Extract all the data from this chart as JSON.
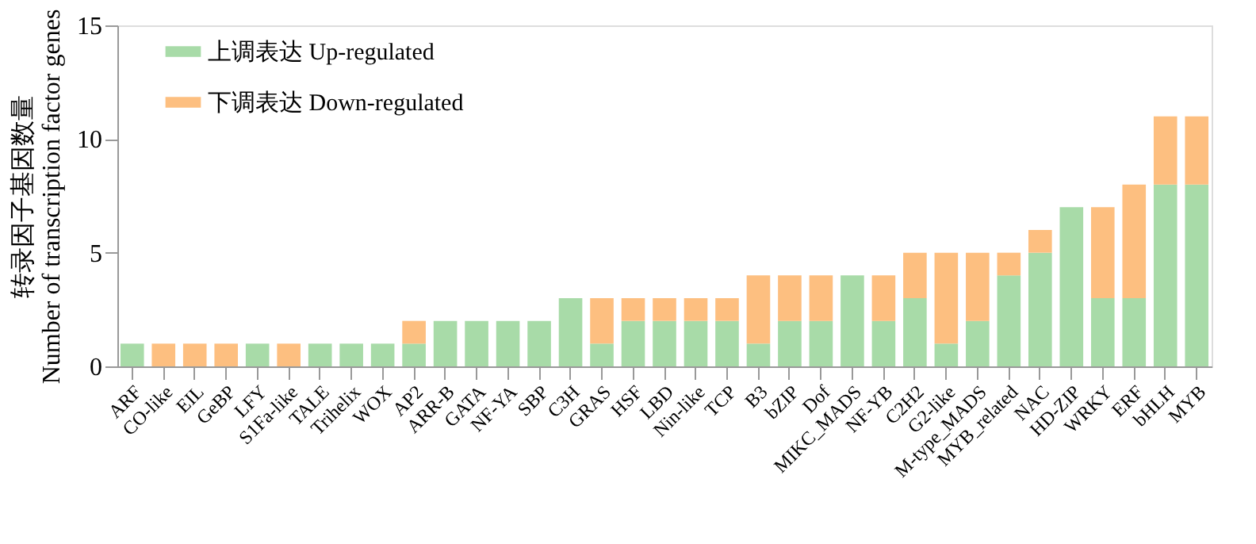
{
  "chart_data": {
    "type": "bar",
    "stacked": true,
    "ylabel": "转录因子基因数量\nNumber of transcription factor genes",
    "categories": [
      "ARF",
      "CO-like",
      "EIL",
      "GeBP",
      "LFY",
      "S1Fa-like",
      "TALE",
      "Trihelix",
      "WOX",
      "AP2",
      "ARR-B",
      "GATA",
      "NF-YA",
      "SBP",
      "C3H",
      "GRAS",
      "HSF",
      "LBD",
      "Nin-like",
      "TCP",
      "B3",
      "bZIP",
      "Dof",
      "MIKC_MADS",
      "NF-YB",
      "C2H2",
      "G2-like",
      "M-type_MADS",
      "MYB_related",
      "NAC",
      "HD-ZIP",
      "WRKY",
      "ERF",
      "bHLH",
      "MYB"
    ],
    "series": [
      {
        "name": "上调表达 Up-regulated",
        "color": "#a8dba8",
        "values": [
          1,
          0,
          0,
          0,
          1,
          0,
          1,
          1,
          1,
          1,
          2,
          2,
          2,
          2,
          3,
          1,
          2,
          2,
          2,
          2,
          1,
          2,
          2,
          4,
          2,
          3,
          1,
          2,
          4,
          5,
          7,
          3,
          3,
          8,
          8
        ]
      },
      {
        "name": "下调表达 Down-regulated",
        "color": "#fdbf80",
        "values": [
          0,
          1,
          1,
          1,
          0,
          1,
          0,
          0,
          0,
          1,
          0,
          0,
          0,
          0,
          0,
          2,
          1,
          1,
          1,
          1,
          3,
          2,
          2,
          0,
          2,
          2,
          4,
          3,
          1,
          1,
          0,
          4,
          5,
          3,
          3
        ]
      }
    ],
    "ylim": [
      0,
      15
    ],
    "yticks": [
      0,
      5,
      10,
      15
    ],
    "grid": false,
    "legend": "top left"
  }
}
